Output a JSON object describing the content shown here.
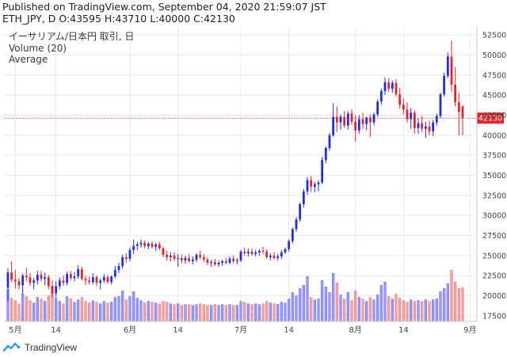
{
  "header": {
    "published": "Published on TradingView.com, September 04, 2020 21:59:07 JST",
    "symbol_line": "ETH_JPY, D O:43595 H:43710 L:40000 C:42130"
  },
  "legend": {
    "title": "イーサリアム/日本円 取引, 日",
    "volume": "Volume (20)",
    "average": "Average"
  },
  "footer": {
    "brand": "TradingView",
    "logo_icon": "tradingview-logo-icon"
  },
  "colors": {
    "up": "#1e2ee0",
    "down": "#e0262a",
    "vol_up": "#9999ff",
    "vol_down": "#f7a1a1",
    "last_price_line": "#e0262a",
    "grid": "#e8e8ee",
    "axis_text": "#444444"
  },
  "chart_data": {
    "type": "candlestick",
    "title": "イーサリアム/日本円 取引, 日",
    "last_price": 42130,
    "last_price_label": "42130",
    "y_ticks": [
      17500,
      20000,
      22500,
      25000,
      27500,
      30000,
      32500,
      35000,
      37500,
      40000,
      42500,
      45000,
      47500,
      50000,
      52500
    ],
    "x_ticks": [
      {
        "label": "5月",
        "index": 2
      },
      {
        "label": "14",
        "index": 13
      },
      {
        "label": "6月",
        "index": 33
      },
      {
        "label": "14",
        "index": 46
      },
      {
        "label": "7月",
        "index": 63
      },
      {
        "label": "14",
        "index": 76
      },
      {
        "label": "8月",
        "index": 94
      },
      {
        "label": "14",
        "index": 107
      },
      {
        "label": "9月",
        "index": 125
      }
    ],
    "ylim": [
      16800,
      53500
    ],
    "grid": true,
    "volume_series": "Volume (20)",
    "candles": [
      [
        21000,
        23400,
        19300,
        22900
      ],
      [
        22900,
        24300,
        21700,
        22000
      ],
      [
        22000,
        23200,
        20900,
        21800
      ],
      [
        21800,
        22200,
        20800,
        21300
      ],
      [
        21300,
        22800,
        20200,
        22500
      ],
      [
        22500,
        23500,
        21800,
        22300
      ],
      [
        22300,
        22800,
        21200,
        21600
      ],
      [
        21600,
        22200,
        20800,
        21900
      ],
      [
        21900,
        23100,
        21400,
        22600
      ],
      [
        22600,
        23100,
        21800,
        22100
      ],
      [
        22100,
        22900,
        21300,
        22300
      ],
      [
        22300,
        22600,
        20800,
        21200
      ],
      [
        21200,
        21900,
        19800,
        20300
      ],
      [
        20300,
        21800,
        19800,
        21200
      ],
      [
        21200,
        22300,
        20800,
        21900
      ],
      [
        21900,
        22500,
        21200,
        21600
      ],
      [
        21600,
        23000,
        21300,
        22700
      ],
      [
        22700,
        23100,
        21900,
        22200
      ],
      [
        22200,
        22900,
        21800,
        22400
      ],
      [
        22400,
        23800,
        22100,
        23300
      ],
      [
        23300,
        23600,
        21900,
        22100
      ],
      [
        22100,
        22500,
        21300,
        21900
      ],
      [
        21900,
        22400,
        21400,
        21700
      ],
      [
        21700,
        22800,
        21400,
        22300
      ],
      [
        22300,
        22500,
        21200,
        21600
      ],
      [
        21600,
        22100,
        20800,
        21900
      ],
      [
        21900,
        22700,
        21600,
        22300
      ],
      [
        22300,
        22600,
        21500,
        21700
      ],
      [
        21700,
        22500,
        21400,
        22400
      ],
      [
        22400,
        23700,
        22200,
        23200
      ],
      [
        23200,
        24100,
        22800,
        23700
      ],
      [
        23700,
        25100,
        23400,
        24800
      ],
      [
        24800,
        25300,
        24100,
        24600
      ],
      [
        24600,
        26000,
        24300,
        25700
      ],
      [
        25700,
        27000,
        25200,
        26200
      ],
      [
        26200,
        26700,
        25700,
        26400
      ],
      [
        26400,
        27000,
        26000,
        26600
      ],
      [
        26600,
        26900,
        25900,
        26200
      ],
      [
        26200,
        26700,
        25800,
        26500
      ],
      [
        26500,
        26800,
        25900,
        26100
      ],
      [
        26100,
        26600,
        25600,
        26400
      ],
      [
        26400,
        26700,
        25700,
        25900
      ],
      [
        25900,
        26100,
        24800,
        25100
      ],
      [
        25100,
        25600,
        24400,
        24800
      ],
      [
        24800,
        25400,
        24300,
        25000
      ],
      [
        25000,
        25400,
        24300,
        24600
      ],
      [
        24600,
        25200,
        23600,
        24700
      ],
      [
        24700,
        25100,
        24000,
        24400
      ],
      [
        24400,
        25000,
        24000,
        24700
      ],
      [
        24700,
        25200,
        24100,
        24300
      ],
      [
        24300,
        24900,
        23900,
        24500
      ],
      [
        24500,
        25300,
        24200,
        25100
      ],
      [
        25100,
        25600,
        24500,
        24800
      ],
      [
        24800,
        25200,
        24200,
        24500
      ],
      [
        24500,
        24800,
        23800,
        24100
      ],
      [
        24100,
        24500,
        23600,
        24200
      ],
      [
        24200,
        24600,
        23700,
        23900
      ],
      [
        23900,
        24400,
        23600,
        24100
      ],
      [
        24100,
        24500,
        23700,
        24300
      ],
      [
        24300,
        24700,
        23900,
        24100
      ],
      [
        24100,
        24900,
        23900,
        24600
      ],
      [
        24600,
        25000,
        24000,
        24300
      ],
      [
        24300,
        24700,
        23900,
        24400
      ],
      [
        24400,
        25700,
        24200,
        25500
      ],
      [
        25500,
        26000,
        25000,
        25300
      ],
      [
        25300,
        25900,
        24900,
        25500
      ],
      [
        25500,
        25900,
        25000,
        25200
      ],
      [
        25200,
        25700,
        24900,
        25400
      ],
      [
        25400,
        25800,
        25000,
        25600
      ],
      [
        25600,
        26100,
        25200,
        25500
      ],
      [
        25500,
        25800,
        24600,
        24800
      ],
      [
        24800,
        25300,
        24400,
        25000
      ],
      [
        25000,
        25400,
        24500,
        24700
      ],
      [
        24700,
        25200,
        24400,
        24900
      ],
      [
        24900,
        25700,
        24600,
        25400
      ],
      [
        25400,
        26000,
        25200,
        25800
      ],
      [
        25800,
        27000,
        25500,
        26800
      ],
      [
        26800,
        28500,
        26500,
        28300
      ],
      [
        28300,
        29800,
        28000,
        29500
      ],
      [
        29500,
        31600,
        29200,
        31400
      ],
      [
        31400,
        33300,
        31000,
        33000
      ],
      [
        33000,
        34800,
        32600,
        34400
      ],
      [
        34400,
        34900,
        32900,
        33600
      ],
      [
        33600,
        34200,
        32900,
        33900
      ],
      [
        33900,
        34400,
        33000,
        34100
      ],
      [
        34100,
        37300,
        33900,
        36900
      ],
      [
        36900,
        38600,
        36500,
        38400
      ],
      [
        38400,
        40300,
        38100,
        40000
      ],
      [
        40000,
        44000,
        39800,
        42300
      ],
      [
        42300,
        43600,
        40400,
        41600
      ],
      [
        41600,
        42600,
        40700,
        42300
      ],
      [
        42300,
        43000,
        40900,
        41200
      ],
      [
        41200,
        43000,
        40700,
        42700
      ],
      [
        42700,
        43200,
        41300,
        41700
      ],
      [
        41700,
        42500,
        39200,
        40600
      ],
      [
        40600,
        42500,
        40200,
        42000
      ],
      [
        42000,
        42800,
        40800,
        41400
      ],
      [
        41400,
        42300,
        40600,
        42200
      ],
      [
        42200,
        42600,
        39800,
        41600
      ],
      [
        41600,
        42800,
        41200,
        42600
      ],
      [
        42600,
        44500,
        42300,
        44200
      ],
      [
        44200,
        45800,
        43800,
        45500
      ],
      [
        45500,
        47200,
        45000,
        46600
      ],
      [
        46600,
        47100,
        45400,
        45800
      ],
      [
        45800,
        46800,
        45300,
        46500
      ],
      [
        46500,
        47000,
        44800,
        45100
      ],
      [
        45100,
        45900,
        43300,
        43800
      ],
      [
        43800,
        44600,
        42600,
        43200
      ],
      [
        43200,
        44100,
        41600,
        42000
      ],
      [
        42000,
        43400,
        40800,
        42800
      ],
      [
        42800,
        43100,
        40200,
        40900
      ],
      [
        40900,
        42100,
        40200,
        41500
      ],
      [
        41500,
        42400,
        40400,
        40800
      ],
      [
        40800,
        41700,
        39700,
        41100
      ],
      [
        41100,
        41800,
        40000,
        40500
      ],
      [
        40500,
        41900,
        39900,
        41600
      ],
      [
        41600,
        42700,
        41200,
        42400
      ],
      [
        42400,
        45300,
        42100,
        45100
      ],
      [
        45100,
        47800,
        44800,
        47400
      ],
      [
        47400,
        50300,
        47100,
        49800
      ],
      [
        49800,
        51800,
        45400,
        46300
      ],
      [
        46300,
        48500,
        43600,
        44100
      ],
      [
        44100,
        45300,
        40000,
        42900
      ],
      [
        43595,
        43710,
        40000,
        42130
      ]
    ],
    "volumes": [
      20800,
      19700,
      19400,
      19000,
      20200,
      19900,
      19400,
      19100,
      19800,
      19600,
      19300,
      20000,
      21200,
      19700,
      19300,
      19000,
      19900,
      19600,
      19200,
      19500,
      19800,
      19300,
      19100,
      19400,
      19200,
      19000,
      19300,
      19100,
      19200,
      19800,
      19900,
      20600,
      19500,
      19900,
      20500,
      19700,
      19400,
      19100,
      19300,
      19200,
      19100,
      19000,
      19300,
      19200,
      19000,
      18900,
      19000,
      18800,
      18900,
      18900,
      18800,
      18900,
      19000,
      18900,
      18800,
      18800,
      18900,
      18800,
      18900,
      18800,
      18900,
      18800,
      18800,
      19300,
      19200,
      19000,
      18900,
      19000,
      18900,
      19000,
      19300,
      19100,
      19000,
      18900,
      19200,
      19100,
      19600,
      20400,
      20000,
      20900,
      21300,
      22400,
      19800,
      19500,
      19600,
      21900,
      21100,
      20400,
      22800,
      21600,
      20100,
      19600,
      20400,
      19400,
      20600,
      19800,
      19600,
      19300,
      19800,
      19500,
      20100,
      21300,
      21700,
      19900,
      19600,
      20200,
      19700,
      19400,
      19200,
      19500,
      19300,
      19400,
      19300,
      19500,
      19300,
      19500,
      19600,
      20500,
      20900,
      21500,
      23200,
      21700,
      20900,
      21000
    ]
  }
}
